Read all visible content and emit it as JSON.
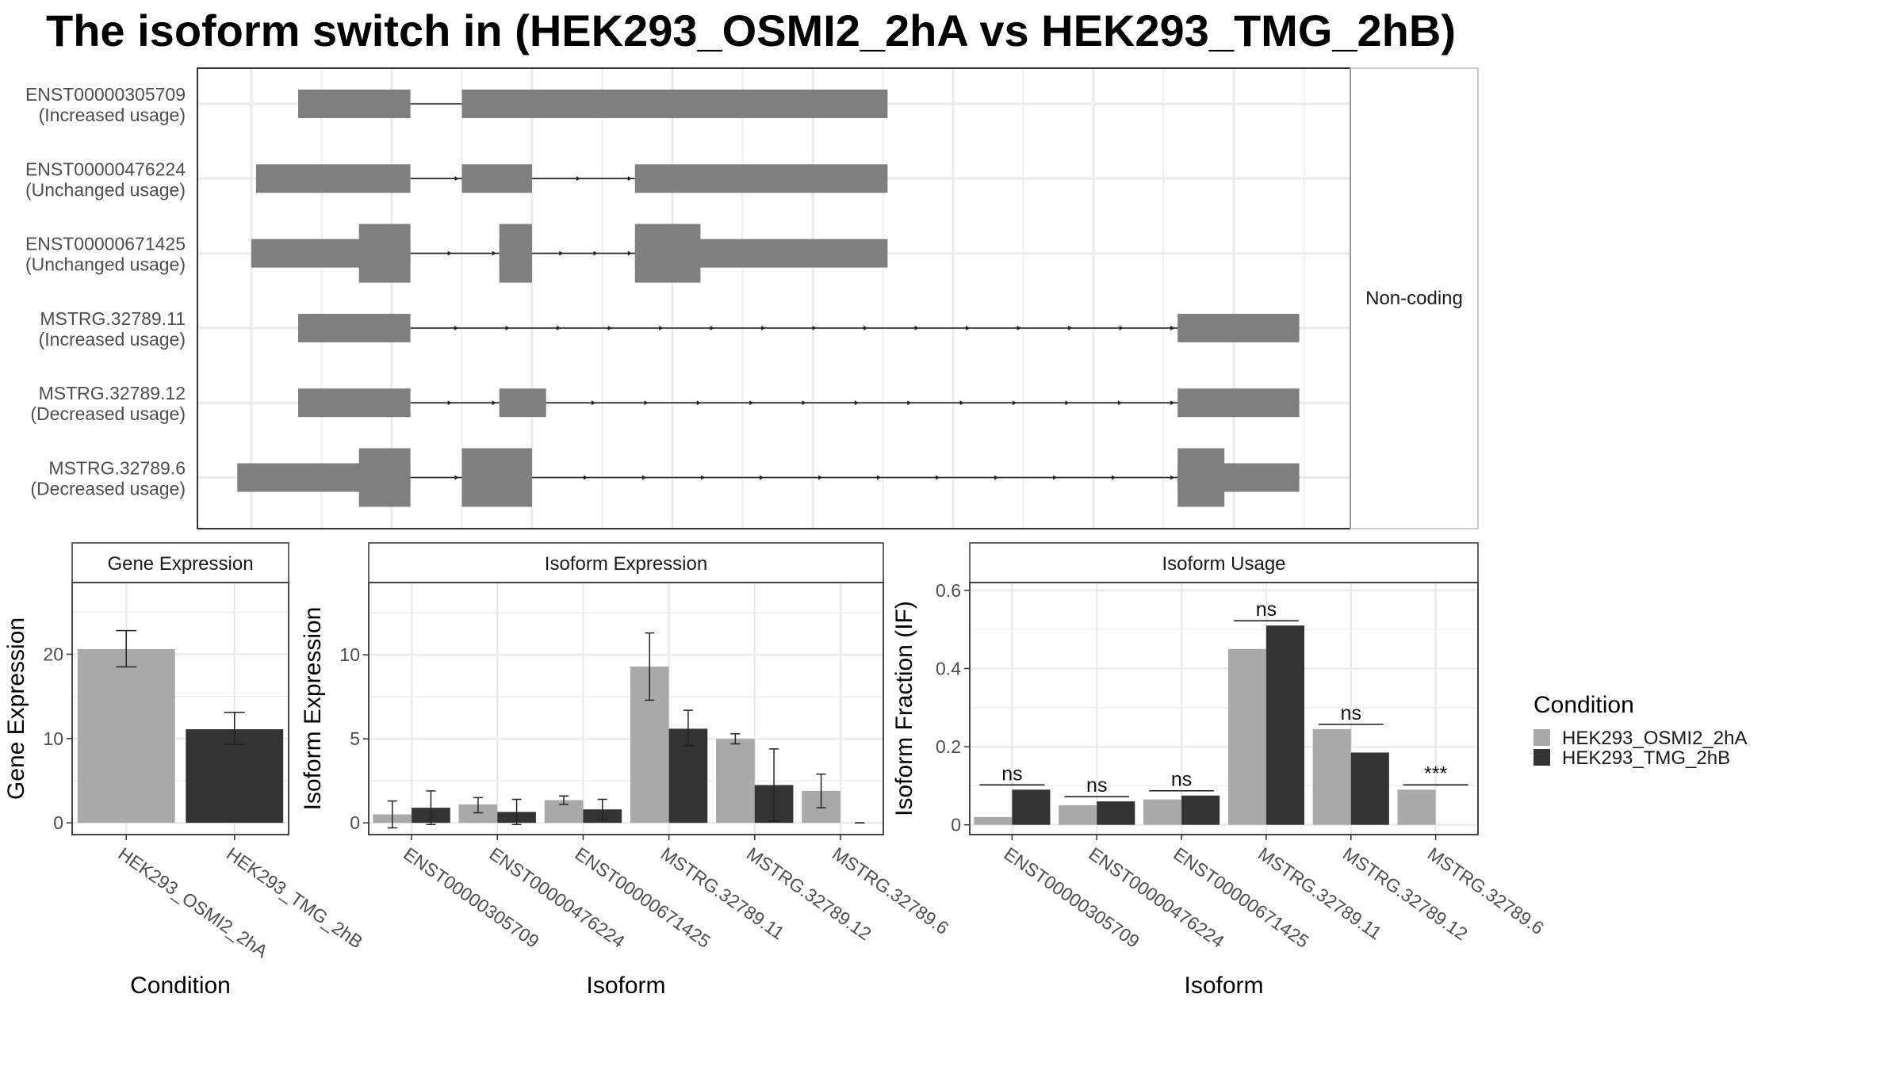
{
  "title": "The isoform switch in  (HEK293_OSMI2_2hA vs HEK293_TMG_2hB)",
  "colors": {
    "cond_a": "#a9a9a9",
    "cond_b": "#333333",
    "exon": "#7f7f7f",
    "grid": "#ebebeb",
    "axis_text": "#4d4d4d"
  },
  "structure": {
    "facet_label": "Non-coding",
    "transcripts": [
      {
        "id": "ENST00000305709",
        "usage": "(Increased usage)",
        "exons": [
          {
            "s": 1.0,
            "e": 3.4
          },
          {
            "s": 4.5,
            "e": 13.6
          }
        ],
        "cds": [],
        "arrows": 0
      },
      {
        "id": "ENST00000476224",
        "usage": "(Unchanged usage)",
        "exons": [
          {
            "s": 0.1,
            "e": 3.4
          },
          {
            "s": 4.5,
            "e": 6.0
          },
          {
            "s": 8.2,
            "e": 13.6
          }
        ],
        "cds": [],
        "arrows": 3
      },
      {
        "id": "ENST00000671425",
        "usage": "(Unchanged usage)",
        "exons": [
          {
            "s": 0.0,
            "e": 3.4
          },
          {
            "s": 5.3,
            "e": 6.0
          },
          {
            "s": 8.2,
            "e": 13.6
          }
        ],
        "cds": [
          {
            "s": 2.3,
            "e": 3.4
          },
          {
            "s": 5.3,
            "e": 6.0
          },
          {
            "s": 8.2,
            "e": 9.6
          }
        ],
        "arrows": 5
      },
      {
        "id": "MSTRG.32789.11",
        "usage": "(Increased usage)",
        "exons": [
          {
            "s": 1.0,
            "e": 3.4
          },
          {
            "s": 19.8,
            "e": 22.4
          }
        ],
        "cds": [],
        "arrows": 15
      },
      {
        "id": "MSTRG.32789.12",
        "usage": "(Decreased usage)",
        "exons": [
          {
            "s": 1.0,
            "e": 3.4
          },
          {
            "s": 5.3,
            "e": 6.3
          },
          {
            "s": 19.8,
            "e": 22.4
          }
        ],
        "cds": [],
        "arrows": 14
      },
      {
        "id": "MSTRG.32789.6",
        "usage": "(Decreased usage)",
        "exons": [
          {
            "s": -0.3,
            "e": 3.4
          },
          {
            "s": 4.5,
            "e": 6.0
          },
          {
            "s": 19.8,
            "e": 22.4
          }
        ],
        "cds": [
          {
            "s": 2.3,
            "e": 3.4
          },
          {
            "s": 4.5,
            "e": 6.0
          },
          {
            "s": 19.8,
            "e": 20.8
          }
        ],
        "arrows": 12
      }
    ]
  },
  "legend": {
    "title": "Condition",
    "items": [
      {
        "label": "HEK293_OSMI2_2hA"
      },
      {
        "label": "HEK293_TMG_2hB"
      }
    ]
  },
  "chart_data": [
    {
      "type": "bar",
      "title": "Gene Expression",
      "xlabel": "Condition",
      "ylabel": "Gene Expression",
      "categories": [
        "HEK293_OSMI2_2hA",
        "HEK293_TMG_2hB"
      ],
      "values": [
        20.6,
        11.1
      ],
      "error_low": [
        18.5,
        9.3
      ],
      "error_high": [
        22.8,
        13.1
      ],
      "ylim": [
        -1.4,
        28.5
      ],
      "yticks": [
        0,
        10,
        20
      ]
    },
    {
      "type": "bar",
      "title": "Isoform Expression",
      "xlabel": "Isoform",
      "ylabel": "Isoform Expression",
      "categories": [
        "ENST00000305709",
        "ENST00000476224",
        "ENST00000671425",
        "MSTRG.32789.11",
        "MSTRG.32789.12",
        "MSTRG.32789.6"
      ],
      "series": [
        {
          "name": "HEK293_OSMI2_2hA",
          "values": [
            0.5,
            1.1,
            1.35,
            9.3,
            5.0,
            1.9
          ],
          "error_low": [
            -0.3,
            0.6,
            1.1,
            7.3,
            4.7,
            0.9
          ],
          "error_high": [
            1.3,
            1.5,
            1.6,
            11.3,
            5.3,
            2.9
          ]
        },
        {
          "name": "HEK293_TMG_2hB",
          "values": [
            0.9,
            0.65,
            0.8,
            5.6,
            2.25,
            0.0
          ],
          "error_low": [
            -0.1,
            -0.1,
            0.2,
            4.6,
            0.1,
            0.0
          ],
          "error_high": [
            1.9,
            1.4,
            1.4,
            6.7,
            4.4,
            0.0
          ]
        }
      ],
      "ylim": [
        -0.7,
        14.3
      ],
      "yticks": [
        0,
        5,
        10
      ]
    },
    {
      "type": "bar",
      "title": "Isoform Usage",
      "xlabel": "Isoform",
      "ylabel": "Isoform Fraction (IF)",
      "categories": [
        "ENST00000305709",
        "ENST00000476224",
        "ENST00000671425",
        "MSTRG.32789.11",
        "MSTRG.32789.12",
        "MSTRG.32789.6"
      ],
      "series": [
        {
          "name": "HEK293_OSMI2_2hA",
          "values": [
            0.02,
            0.05,
            0.065,
            0.45,
            0.245,
            0.09
          ]
        },
        {
          "name": "HEK293_TMG_2hB",
          "values": [
            0.09,
            0.06,
            0.075,
            0.51,
            0.185,
            0.0
          ]
        }
      ],
      "significance": [
        "ns",
        "ns",
        "ns",
        "ns",
        "ns",
        "***"
      ],
      "ylim": [
        -0.025,
        0.62
      ],
      "yticks": [
        0.0,
        0.2,
        0.4,
        0.6
      ]
    }
  ]
}
